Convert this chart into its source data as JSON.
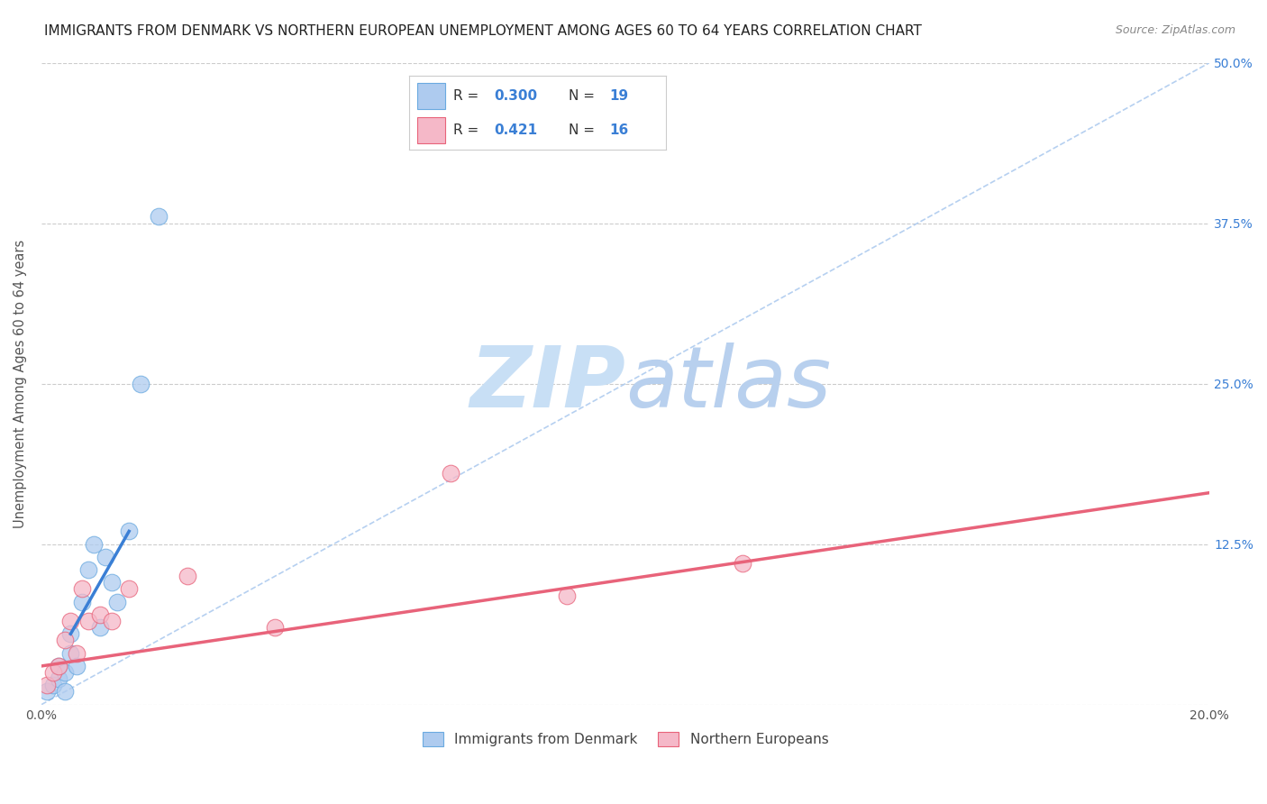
{
  "title": "IMMIGRANTS FROM DENMARK VS NORTHERN EUROPEAN UNEMPLOYMENT AMONG AGES 60 TO 64 YEARS CORRELATION CHART",
  "source": "Source: ZipAtlas.com",
  "ylabel": "Unemployment Among Ages 60 to 64 years",
  "xlim": [
    0.0,
    0.2
  ],
  "ylim": [
    0.0,
    0.5
  ],
  "xticks": [
    0.0,
    0.05,
    0.1,
    0.15,
    0.2
  ],
  "xticklabels": [
    "0.0%",
    "",
    "",
    "",
    "20.0%"
  ],
  "yticks": [
    0.0,
    0.125,
    0.25,
    0.375,
    0.5
  ],
  "yticklabels": [
    "",
    "12.5%",
    "25.0%",
    "37.5%",
    "50.0%"
  ],
  "legend_color1": "#aecbef",
  "legend_color2": "#f5b8c8",
  "line_color1": "#3a7fd5",
  "line_color2": "#e8637a",
  "dot_color1": "#aecbef",
  "dot_color2": "#f5b8c8",
  "dot_edge1": "#6aaae0",
  "dot_edge2": "#e8637a",
  "watermark_zip": "ZIP",
  "watermark_atlas": "atlas",
  "watermark_color_zip": "#c8dff5",
  "watermark_color_atlas": "#b8d0ee",
  "trend_line_color": "#aecbef",
  "background": "#ffffff",
  "grid_color": "#cccccc",
  "blue_scatter_x": [
    0.001,
    0.002,
    0.003,
    0.003,
    0.004,
    0.004,
    0.005,
    0.005,
    0.006,
    0.007,
    0.008,
    0.009,
    0.01,
    0.011,
    0.012,
    0.013,
    0.015,
    0.017,
    0.02
  ],
  "blue_scatter_y": [
    0.01,
    0.015,
    0.02,
    0.03,
    0.01,
    0.025,
    0.04,
    0.055,
    0.03,
    0.08,
    0.105,
    0.125,
    0.06,
    0.115,
    0.095,
    0.08,
    0.135,
    0.25,
    0.38
  ],
  "pink_scatter_x": [
    0.001,
    0.002,
    0.003,
    0.004,
    0.005,
    0.006,
    0.007,
    0.008,
    0.01,
    0.012,
    0.015,
    0.025,
    0.04,
    0.07,
    0.09,
    0.12
  ],
  "pink_scatter_y": [
    0.015,
    0.025,
    0.03,
    0.05,
    0.065,
    0.04,
    0.09,
    0.065,
    0.07,
    0.065,
    0.09,
    0.1,
    0.06,
    0.18,
    0.085,
    0.11
  ],
  "blue_trend_start_x": 0.005,
  "blue_trend_start_y": 0.055,
  "blue_trend_end_x": 0.015,
  "blue_trend_end_y": 0.135,
  "pink_trend_start_x": 0.0,
  "pink_trend_start_y": 0.03,
  "pink_trend_end_x": 0.2,
  "pink_trend_end_y": 0.165,
  "dashed_line_x": [
    0.0,
    0.2
  ],
  "dashed_line_y": [
    0.0,
    0.5
  ],
  "label_denmark": "Immigrants from Denmark",
  "label_northern": "Northern Europeans",
  "title_fontsize": 11,
  "source_fontsize": 9,
  "tick_fontsize": 10,
  "ylabel_fontsize": 10.5,
  "scatter_size": 180
}
